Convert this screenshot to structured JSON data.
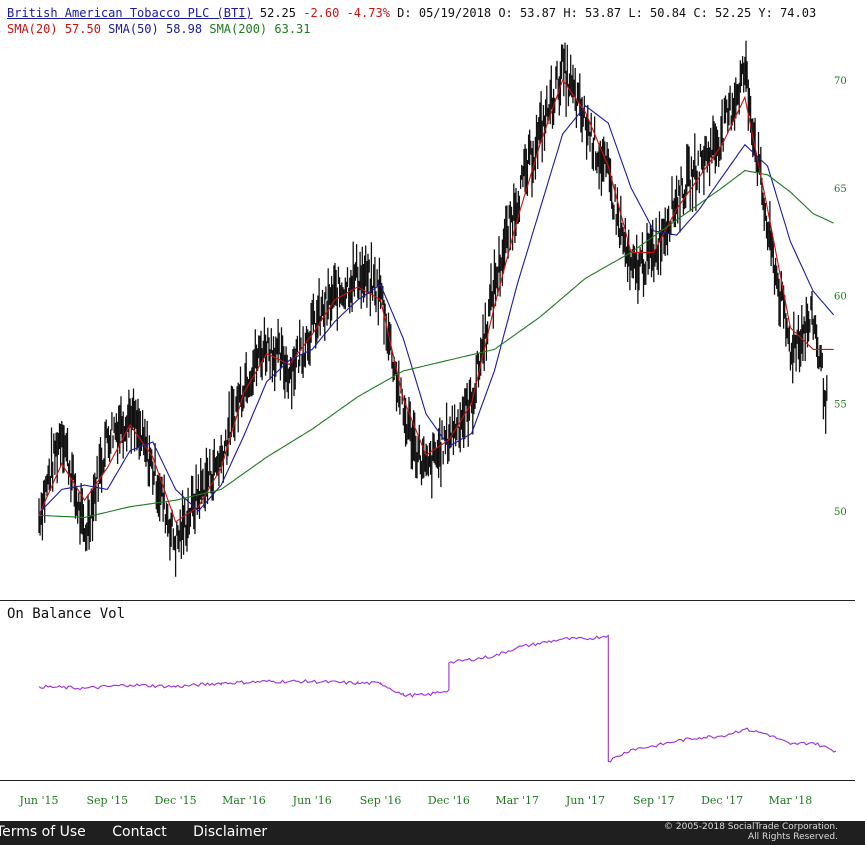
{
  "header": {
    "title": "British American Tobacco PLC (BTI)",
    "quote_last": "52.25",
    "quote_change": "-2.60 -4.73%",
    "quote_detail": "D: 05/19/2018 O: 53.87 H: 53.87 L: 50.84 C: 52.25 Y: 74.03",
    "sma20_label": "SMA(20)",
    "sma20_value": "57.50",
    "sma50_label": "SMA(50)",
    "sma50_value": "58.98",
    "sma200_label": "SMA(200)",
    "sma200_value": "63.31"
  },
  "obv_panel": {
    "title": "On Balance Vol"
  },
  "footer": {
    "terms": "Terms of Use",
    "contact": "Contact",
    "disclaimer": "Disclaimer",
    "copyright_line1": "© 2005-2018 SocialTrade Corporation.",
    "copyright_line2": "All Rights Reserved."
  },
  "colors": {
    "price_bars": "#111111",
    "sma20": "#d01010",
    "sma50": "#1a1aa6",
    "sma200": "#1e7a1e",
    "obv": "#9b30d9",
    "axis_labels": "#1e7a1e"
  },
  "chart_data": [
    {
      "type": "line",
      "subtype": "ohlc-price",
      "y_ticks": [
        50,
        55,
        60,
        65,
        70
      ],
      "ylim": [
        45.7,
        72.4
      ],
      "x_ticks": [
        "Jun '15",
        "Sep '15",
        "Dec '15",
        "Mar '16",
        "Jun '16",
        "Sep '16",
        "Dec '16",
        "Mar '17",
        "Jun '17",
        "Sep '17",
        "Dec '17",
        "Mar '18"
      ],
      "xlim": [
        "Jun '15",
        "Apr '18"
      ],
      "price_keypoints": [
        [
          "Jun '15",
          49.8
        ],
        [
          "Jul '15",
          53.8
        ],
        [
          "Aug '15",
          48.8
        ],
        [
          "Sep '15",
          53.5
        ],
        [
          "Oct '15",
          54.5
        ],
        [
          "Nov '15",
          52.0
        ],
        [
          "Dec '15",
          48.5
        ],
        [
          "Jan '16",
          50.8
        ],
        [
          "Feb '16",
          52.5
        ],
        [
          "Mar '16",
          56.0
        ],
        [
          "Apr '16",
          57.8
        ],
        [
          "May '16",
          56.5
        ],
        [
          "Jun '16",
          58.5
        ],
        [
          "Jul '16",
          60.0
        ],
        [
          "Aug '16",
          61.0
        ],
        [
          "Sep '16",
          60.2
        ],
        [
          "Oct '16",
          54.5
        ],
        [
          "Nov '16",
          51.8
        ],
        [
          "Dec '16",
          53.5
        ],
        [
          "Jan '17",
          55.0
        ],
        [
          "Feb '17",
          60.5
        ],
        [
          "Mar '17",
          64.5
        ],
        [
          "Apr '17",
          67.5
        ],
        [
          "May '17",
          70.5
        ],
        [
          "Jun '17",
          68.0
        ],
        [
          "Jul '17",
          65.5
        ],
        [
          "Aug '17",
          61.0
        ],
        [
          "Sep '17",
          62.0
        ],
        [
          "Oct '17",
          64.5
        ],
        [
          "Nov '17",
          66.0
        ],
        [
          "Dec '17",
          67.5
        ],
        [
          "Jan '18",
          70.5
        ],
        [
          "Feb '18",
          63.0
        ],
        [
          "Mar '18",
          57.5
        ],
        [
          "Apr '18",
          59.0
        ],
        [
          "May '18",
          52.25
        ]
      ],
      "series": [
        {
          "name": "SMA(20)",
          "points": [
            [
              "Jun '15",
              49.8
            ],
            [
              "Jul '15",
              52.2
            ],
            [
              "Aug '15",
              50.5
            ],
            [
              "Sep '15",
              52.0
            ],
            [
              "Oct '15",
              54.0
            ],
            [
              "Nov '15",
              52.5
            ],
            [
              "Dec '15",
              49.5
            ],
            [
              "Jan '16",
              50.2
            ],
            [
              "Feb '16",
              52.0
            ],
            [
              "Mar '16",
              55.5
            ],
            [
              "Apr '16",
              57.3
            ],
            [
              "May '16",
              56.8
            ],
            [
              "Jun '16",
              58.2
            ],
            [
              "Jul '16",
              59.8
            ],
            [
              "Aug '16",
              60.4
            ],
            [
              "Sep '16",
              59.8
            ],
            [
              "Oct '16",
              55.2
            ],
            [
              "Nov '16",
              52.6
            ],
            [
              "Dec '16",
              53.3
            ],
            [
              "Jan '17",
              55.0
            ],
            [
              "Feb '17",
              59.5
            ],
            [
              "Mar '17",
              63.5
            ],
            [
              "Apr '17",
              67.0
            ],
            [
              "May '17",
              70.0
            ],
            [
              "Jun '17",
              68.5
            ],
            [
              "Jul '17",
              66.0
            ],
            [
              "Aug '17",
              62.0
            ],
            [
              "Sep '17",
              62.0
            ],
            [
              "Oct '17",
              64.0
            ],
            [
              "Nov '17",
              65.5
            ],
            [
              "Dec '17",
              67.0
            ],
            [
              "Jan '18",
              69.2
            ],
            [
              "Feb '18",
              64.0
            ],
            [
              "Mar '18",
              58.5
            ],
            [
              "Apr '18",
              57.5
            ],
            [
              "May '18",
              57.5
            ]
          ]
        },
        {
          "name": "SMA(50)",
          "points": [
            [
              "Jun '15",
              49.9
            ],
            [
              "Jul '15",
              51.0
            ],
            [
              "Aug '15",
              51.2
            ],
            [
              "Sep '15",
              51.0
            ],
            [
              "Oct '15",
              52.8
            ],
            [
              "Nov '15",
              53.2
            ],
            [
              "Dec '15",
              51.0
            ],
            [
              "Jan '16",
              50.0
            ],
            [
              "Feb '16",
              51.2
            ],
            [
              "Mar '16",
              53.5
            ],
            [
              "Apr '16",
              56.0
            ],
            [
              "May '16",
              57.0
            ],
            [
              "Jun '16",
              57.5
            ],
            [
              "Jul '16",
              58.8
            ],
            [
              "Aug '16",
              59.8
            ],
            [
              "Sep '16",
              60.5
            ],
            [
              "Oct '16",
              58.0
            ],
            [
              "Nov '16",
              54.5
            ],
            [
              "Dec '16",
              53.0
            ],
            [
              "Jan '17",
              53.6
            ],
            [
              "Feb '17",
              56.5
            ],
            [
              "Mar '17",
              60.5
            ],
            [
              "Apr '17",
              64.0
            ],
            [
              "May '17",
              67.5
            ],
            [
              "Jun '17",
              68.8
            ],
            [
              "Jul '17",
              68.0
            ],
            [
              "Aug '17",
              65.0
            ],
            [
              "Sep '17",
              63.0
            ],
            [
              "Oct '17",
              62.8
            ],
            [
              "Nov '17",
              64.0
            ],
            [
              "Dec '17",
              65.5
            ],
            [
              "Jan '18",
              67.0
            ],
            [
              "Feb '18",
              66.0
            ],
            [
              "Mar '18",
              62.5
            ],
            [
              "Apr '18",
              60.2
            ],
            [
              "May '18",
              58.98
            ]
          ]
        },
        {
          "name": "SMA(200)",
          "points": [
            [
              "Jun '15",
              49.8
            ],
            [
              "Aug '15",
              49.7
            ],
            [
              "Oct '15",
              50.2
            ],
            [
              "Dec '15",
              50.5
            ],
            [
              "Feb '16",
              51.0
            ],
            [
              "Apr '16",
              52.5
            ],
            [
              "Jun '16",
              53.8
            ],
            [
              "Aug '16",
              55.3
            ],
            [
              "Oct '16",
              56.5
            ],
            [
              "Dec '16",
              57.0
            ],
            [
              "Feb '17",
              57.5
            ],
            [
              "Apr '17",
              59.0
            ],
            [
              "Jun '17",
              60.8
            ],
            [
              "Aug '17",
              62.0
            ],
            [
              "Oct '17",
              63.5
            ],
            [
              "Dec '17",
              65.0
            ],
            [
              "Jan '18",
              65.8
            ],
            [
              "Feb '18",
              65.6
            ],
            [
              "Mar '18",
              64.8
            ],
            [
              "Apr '18",
              63.8
            ],
            [
              "May '18",
              63.31
            ]
          ]
        }
      ]
    },
    {
      "type": "line",
      "title": "On Balance Vol",
      "y_axis": "unlabeled",
      "series": [
        {
          "points": [
            [
              "Jun '15",
              0.52
            ],
            [
              "Aug '15",
              0.51
            ],
            [
              "Oct '15",
              0.53
            ],
            [
              "Dec '15",
              0.52
            ],
            [
              "Feb '16",
              0.54
            ],
            [
              "Apr '16",
              0.55
            ],
            [
              "Jun '16",
              0.55
            ],
            [
              "Aug '16",
              0.54
            ],
            [
              "Sep '16",
              0.54
            ],
            [
              "Oct '16",
              0.47
            ],
            [
              "Nov '16",
              0.47
            ],
            [
              "Dec '16",
              0.5
            ],
            [
              "Dec '16",
              0.66
            ],
            [
              "Feb '17",
              0.7
            ],
            [
              "Mar '17",
              0.75
            ],
            [
              "May '17",
              0.8
            ],
            [
              "Jun '17",
              0.8
            ],
            [
              "Jul '17",
              0.82
            ],
            [
              "Jul '17",
              0.08
            ],
            [
              "Aug '17",
              0.15
            ],
            [
              "Sep '17",
              0.17
            ],
            [
              "Oct '17",
              0.2
            ],
            [
              "Nov '17",
              0.22
            ],
            [
              "Dec '17",
              0.23
            ],
            [
              "Jan '18",
              0.27
            ],
            [
              "Feb '18",
              0.24
            ],
            [
              "Mar '18",
              0.18
            ],
            [
              "Apr '18",
              0.19
            ],
            [
              "May '18",
              0.14
            ]
          ]
        }
      ]
    }
  ]
}
